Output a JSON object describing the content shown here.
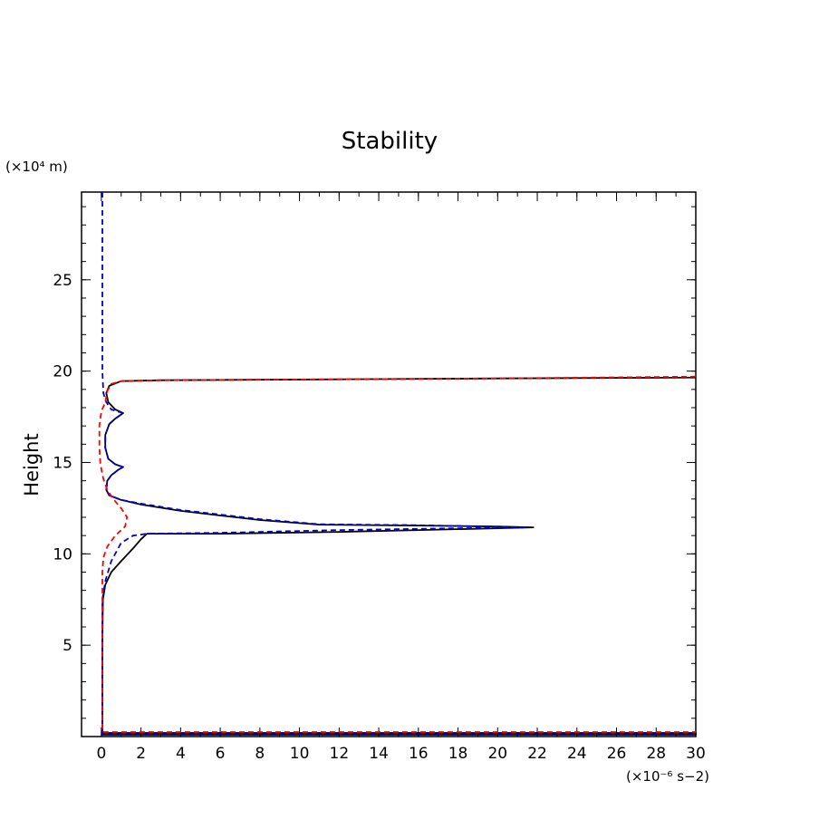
{
  "chart_data": {
    "type": "line",
    "title": "Stability",
    "xlabel": "",
    "ylabel": "Height",
    "x_unit": "(×10⁻⁶ s−2)",
    "y_unit": "(×10⁴ m)",
    "xlim": [
      -1,
      30
    ],
    "ylim": [
      0,
      29.8
    ],
    "x_ticks": [
      0,
      2,
      4,
      6,
      8,
      10,
      12,
      14,
      16,
      18,
      20,
      22,
      24,
      26,
      28,
      30
    ],
    "y_ticks": [
      5,
      10,
      15,
      20,
      25
    ],
    "grid": false,
    "legend": "none",
    "series": [
      {
        "color": "#000000",
        "dash": "solid",
        "points": [
          [
            0,
            0.2
          ],
          [
            30,
            0.2
          ],
          [
            30,
            0.1
          ],
          [
            0.05,
            0.1
          ],
          [
            0.05,
            5
          ],
          [
            0.08,
            7.5
          ],
          [
            0.2,
            8.3
          ],
          [
            0.5,
            9.0
          ],
          [
            1.0,
            9.6
          ],
          [
            1.6,
            10.3
          ],
          [
            2.0,
            10.8
          ],
          [
            2.3,
            11.1
          ],
          [
            6,
            11.1
          ],
          [
            12,
            11.2
          ],
          [
            16,
            11.3
          ],
          [
            20,
            11.4
          ],
          [
            21.8,
            11.45
          ],
          [
            20,
            11.5
          ],
          [
            16,
            11.55
          ],
          [
            11,
            11.6
          ],
          [
            8,
            11.85
          ],
          [
            6,
            12.1
          ],
          [
            4,
            12.35
          ],
          [
            2,
            12.7
          ],
          [
            1,
            12.95
          ],
          [
            0.4,
            13.2
          ],
          [
            0.25,
            13.5
          ],
          [
            0.3,
            14.0
          ],
          [
            0.5,
            14.3
          ],
          [
            0.85,
            14.6
          ],
          [
            1.1,
            14.75
          ],
          [
            0.7,
            14.9
          ],
          [
            0.35,
            15.2
          ],
          [
            0.2,
            15.8
          ],
          [
            0.2,
            16.5
          ],
          [
            0.4,
            17.1
          ],
          [
            0.7,
            17.4
          ],
          [
            1.1,
            17.7
          ],
          [
            0.7,
            17.9
          ],
          [
            0.35,
            18.3
          ],
          [
            0.25,
            18.8
          ],
          [
            0.4,
            19.2
          ],
          [
            1,
            19.45
          ],
          [
            3,
            19.5
          ],
          [
            12,
            19.55
          ],
          [
            20,
            19.6
          ],
          [
            30,
            19.65
          ]
        ]
      },
      {
        "color": "#0000cc",
        "dash": "dashed",
        "points": [
          [
            0.05,
            29.8
          ],
          [
            0.05,
            20
          ],
          [
            0.1,
            18.8
          ],
          [
            0.25,
            18.3
          ],
          [
            0.5,
            17.9
          ],
          [
            1.1,
            17.7
          ],
          [
            0.7,
            17.4
          ],
          [
            0.4,
            17.1
          ],
          [
            0.2,
            16.5
          ],
          [
            0.2,
            15.8
          ],
          [
            0.35,
            15.2
          ],
          [
            0.7,
            14.9
          ],
          [
            1.1,
            14.75
          ],
          [
            0.85,
            14.6
          ],
          [
            0.5,
            14.3
          ],
          [
            0.3,
            14.0
          ],
          [
            0.25,
            13.5
          ],
          [
            0.4,
            13.2
          ],
          [
            1,
            12.95
          ],
          [
            2,
            12.75
          ],
          [
            4,
            12.4
          ],
          [
            6,
            12.15
          ],
          [
            8,
            11.9
          ],
          [
            11,
            11.62
          ],
          [
            16,
            11.57
          ],
          [
            20,
            11.48
          ],
          [
            21.5,
            11.45
          ],
          [
            18,
            11.4
          ],
          [
            12,
            11.3
          ],
          [
            6,
            11.15
          ],
          [
            2.3,
            11.1
          ],
          [
            1.6,
            11.0
          ],
          [
            1.0,
            10.6
          ],
          [
            0.5,
            9.6
          ],
          [
            0.2,
            8.5
          ],
          [
            0.05,
            7.5
          ],
          [
            0.05,
            0.15
          ],
          [
            30,
            0.15
          ]
        ]
      },
      {
        "color": "#ff0000",
        "dash": "dashed",
        "points": [
          [
            30,
            19.7
          ],
          [
            20,
            19.6
          ],
          [
            12,
            19.55
          ],
          [
            3,
            19.5
          ],
          [
            1,
            19.45
          ],
          [
            0.5,
            19.3
          ],
          [
            0.3,
            18.9
          ],
          [
            0.2,
            18.3
          ],
          [
            0,
            17.8
          ],
          [
            -0.1,
            17.0
          ],
          [
            -0.1,
            15.8
          ],
          [
            -0.05,
            14.9
          ],
          [
            0.1,
            14.1
          ],
          [
            0.3,
            13.5
          ],
          [
            0.6,
            13.0
          ],
          [
            1.0,
            12.5
          ],
          [
            1.3,
            12.0
          ],
          [
            1.2,
            11.5
          ],
          [
            0.7,
            11.0
          ],
          [
            0.3,
            10.4
          ],
          [
            0.1,
            9.8
          ],
          [
            0.05,
            9.0
          ],
          [
            0.05,
            0.25
          ],
          [
            30,
            0.25
          ]
        ]
      }
    ]
  }
}
